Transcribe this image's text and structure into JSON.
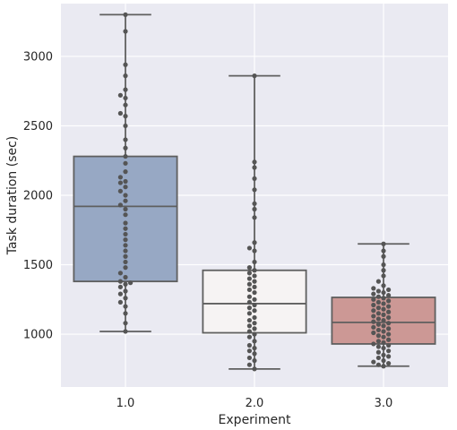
{
  "chart_data": {
    "type": "box",
    "title": "",
    "xlabel": "Experiment",
    "ylabel": "Task duration (sec)",
    "ylim": [
      620,
      3380
    ],
    "yticks": [
      1000,
      1500,
      2000,
      2500,
      3000
    ],
    "ytick_labels": [
      "1000",
      "1500",
      "2000",
      "2500",
      "3000"
    ],
    "grid": true,
    "categories": [
      "1.0",
      "2.0",
      "3.0"
    ],
    "colors": {
      "background": "#EAEAF2",
      "grid": "#FFFFFF",
      "box_edge": "#5F5F5F",
      "points": "#555555",
      "boxes": [
        "#97A8C4",
        "#F6F3F3",
        "#CC9895"
      ]
    },
    "series": [
      {
        "category": "1.0",
        "whisker_low": 1020,
        "q1": 1380,
        "median": 1920,
        "q3": 2280,
        "whisker_high": 3300,
        "points": [
          1020,
          1080,
          1150,
          1200,
          1230,
          1260,
          1290,
          1310,
          1340,
          1360,
          1370,
          1380,
          1410,
          1440,
          1480,
          1520,
          1560,
          1600,
          1640,
          1680,
          1720,
          1760,
          1800,
          1860,
          1900,
          1930,
          1960,
          2000,
          2030,
          2060,
          2090,
          2100,
          2130,
          2170,
          2230,
          2280,
          2340,
          2400,
          2500,
          2570,
          2590,
          2650,
          2700,
          2720,
          2760,
          2860,
          2940,
          3180,
          3300
        ]
      },
      {
        "category": "2.0",
        "whisker_low": 750,
        "q1": 1010,
        "median": 1220,
        "q3": 1460,
        "whisker_high": 2860,
        "points": [
          750,
          780,
          810,
          830,
          860,
          880,
          900,
          920,
          950,
          980,
          1000,
          1020,
          1040,
          1060,
          1080,
          1100,
          1120,
          1150,
          1170,
          1190,
          1210,
          1230,
          1250,
          1270,
          1300,
          1320,
          1340,
          1360,
          1380,
          1400,
          1420,
          1440,
          1460,
          1480,
          1520,
          1600,
          1620,
          1660,
          1840,
          1900,
          1940,
          2040,
          2120,
          2200,
          2240,
          2860
        ]
      },
      {
        "category": "3.0",
        "whisker_low": 770,
        "q1": 930,
        "median": 1085,
        "q3": 1265,
        "whisker_high": 1650,
        "points": [
          770,
          780,
          790,
          800,
          810,
          830,
          840,
          850,
          870,
          880,
          900,
          910,
          920,
          930,
          940,
          950,
          960,
          980,
          990,
          1000,
          1010,
          1020,
          1030,
          1040,
          1050,
          1060,
          1070,
          1080,
          1090,
          1100,
          1110,
          1120,
          1130,
          1140,
          1150,
          1160,
          1170,
          1180,
          1190,
          1200,
          1210,
          1220,
          1230,
          1240,
          1250,
          1260,
          1270,
          1280,
          1290,
          1300,
          1310,
          1320,
          1330,
          1350,
          1380,
          1420,
          1460,
          1500,
          1560,
          1600,
          1650
        ]
      }
    ]
  }
}
